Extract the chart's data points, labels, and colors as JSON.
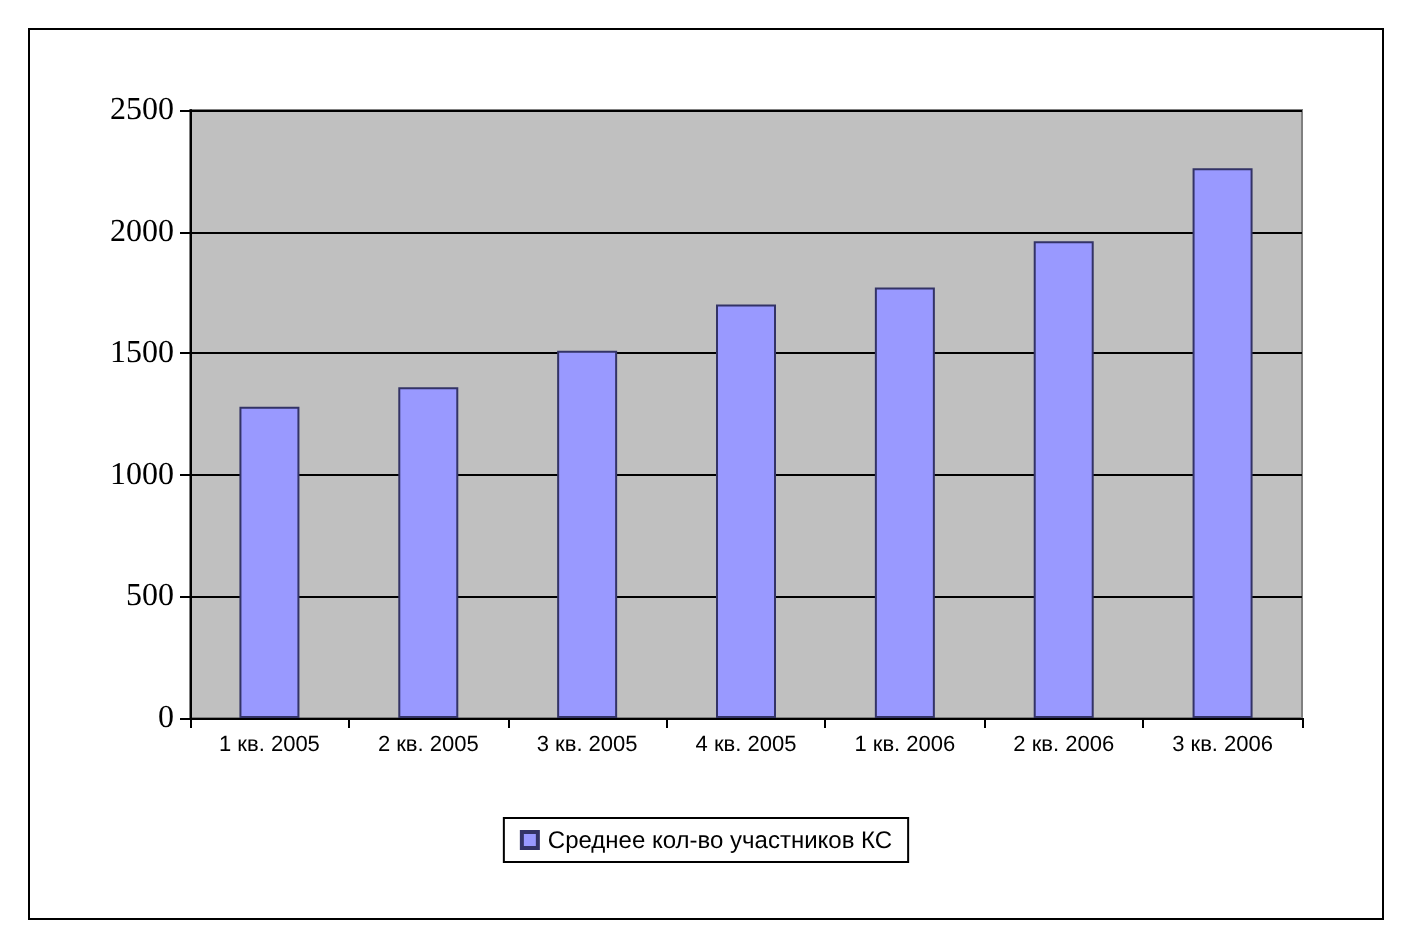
{
  "chart_data": {
    "type": "bar",
    "categories": [
      "1 кв. 2005",
      "2 кв. 2005",
      "3 кв. 2005",
      "4 кв. 2005",
      "1 кв. 2006",
      "2 кв. 2006",
      "3 кв. 2006"
    ],
    "series": [
      {
        "name": "Среднее кол-во участников КС",
        "color": "#9999ff",
        "values": [
          1280,
          1360,
          1510,
          1700,
          1770,
          1960,
          2260
        ]
      }
    ],
    "ylim": [
      0,
      2500
    ],
    "yticks": [
      0,
      500,
      1000,
      1500,
      2000,
      2500
    ],
    "grid": "y",
    "legend": "bottom"
  }
}
